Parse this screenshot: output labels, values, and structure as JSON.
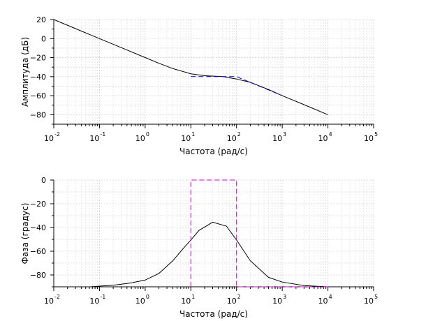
{
  "chart_data": [
    {
      "type": "line",
      "xlabel": "Частота (рад/с)",
      "ylabel": "Амплитуда (дБ)",
      "xscale": "log",
      "xlim": [
        0.01,
        100000
      ],
      "ylim": [
        -90,
        20
      ],
      "grid": true,
      "yticks": [
        20,
        0,
        -20,
        -40,
        -60,
        -80
      ],
      "xtick_exponents": [
        "-2",
        "-1",
        "0",
        "1",
        "2",
        "3",
        "4",
        "5"
      ],
      "series": [
        {
          "color": "#000000",
          "style": "solid",
          "x": [
            0.01,
            0.03,
            0.1,
            0.3,
            1,
            2,
            4,
            10,
            20,
            50,
            100,
            200,
            500,
            1000,
            3000,
            10000
          ],
          "y": [
            20,
            10.5,
            0,
            -9.5,
            -20,
            -26,
            -31.5,
            -37,
            -39,
            -40,
            -42.5,
            -46,
            -53.5,
            -60,
            -69.5,
            -80
          ]
        },
        {
          "color": "#0000cc",
          "style": "dashed",
          "x": [
            10,
            100,
            1000
          ],
          "y": [
            -40,
            -40,
            -60
          ]
        }
      ]
    },
    {
      "type": "line",
      "xlabel": "Частота (рад/с)",
      "ylabel": "Фаза (градус)",
      "xscale": "log",
      "xlim": [
        0.01,
        100000
      ],
      "ylim": [
        -90,
        0
      ],
      "grid": true,
      "yticks": [
        0,
        -20,
        -40,
        -60,
        -80
      ],
      "xtick_exponents": [
        "-2",
        "-1",
        "0",
        "1",
        "2",
        "3",
        "4",
        "5"
      ],
      "series": [
        {
          "color": "#000000",
          "style": "solid",
          "x": [
            0.0631,
            0.1,
            0.2,
            0.5,
            1,
            2,
            4,
            7,
            10,
            15,
            30,
            60,
            100,
            200,
            500,
            1000,
            3000,
            10000
          ],
          "y": [
            -90,
            -89.4,
            -88.7,
            -86.7,
            -84.3,
            -78.7,
            -68.2,
            -57.2,
            -50.5,
            -42.5,
            -35.5,
            -38.8,
            -50.5,
            -68,
            -82,
            -86,
            -89,
            -90
          ]
        },
        {
          "color": "#cc00cc",
          "style": "dashed",
          "x": [
            10,
            10,
            100,
            100,
            1000,
            10000
          ],
          "y": [
            -90,
            0,
            0,
            -90,
            -90,
            -90
          ]
        }
      ]
    }
  ]
}
